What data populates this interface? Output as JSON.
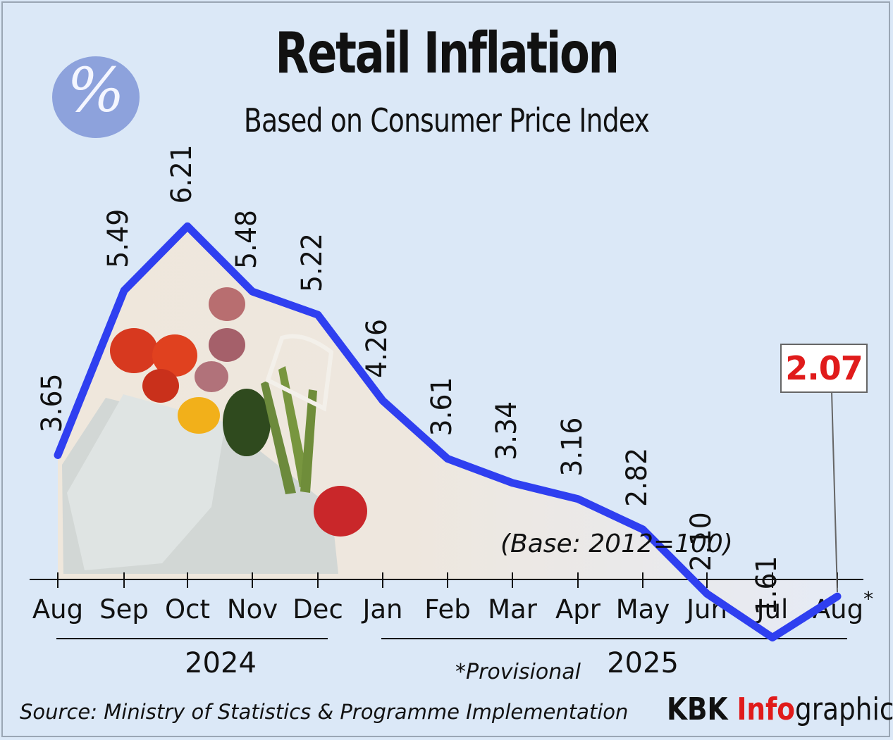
{
  "title": "Retail Inflation",
  "subtitle": "Based on Consumer Price Index",
  "badge_symbol": "%",
  "base_note": "(Base: 2012=100)",
  "provisional_note": "*Provisional",
  "source": "Source: Ministry of Statistics & Programme Implementation",
  "brand": {
    "part1": "KBK ",
    "part2": "Info",
    "part3": "graphics"
  },
  "colors": {
    "line": "#2f3ff0",
    "highlight": "#e01b1b",
    "background": "#dbe8f7",
    "badge": "#8da2dc"
  },
  "chart_data": {
    "type": "line",
    "title": "Retail Inflation",
    "subtitle": "Based on Consumer Price Index",
    "categories": [
      "Aug",
      "Sep",
      "Oct",
      "Nov",
      "Dec",
      "Jan",
      "Feb",
      "Mar",
      "Apr",
      "May",
      "Jun",
      "Jul",
      "Aug*"
    ],
    "value_labels": [
      "3.65",
      "5.49",
      "6.21",
      "5.48",
      "5.22",
      "4.26",
      "3.61",
      "3.34",
      "3.16",
      "2.82",
      "2.10",
      "1.61",
      "2.07"
    ],
    "values": [
      3.65,
      5.49,
      6.21,
      5.48,
      5.22,
      4.26,
      3.61,
      3.34,
      3.16,
      2.82,
      2.1,
      1.61,
      2.07
    ],
    "year_groups": [
      {
        "label": "2024",
        "start": 0,
        "end": 4
      },
      {
        "label": "2025",
        "start": 5,
        "end": 12
      }
    ],
    "highlight_index": 12,
    "grid": false,
    "legend": "none"
  }
}
